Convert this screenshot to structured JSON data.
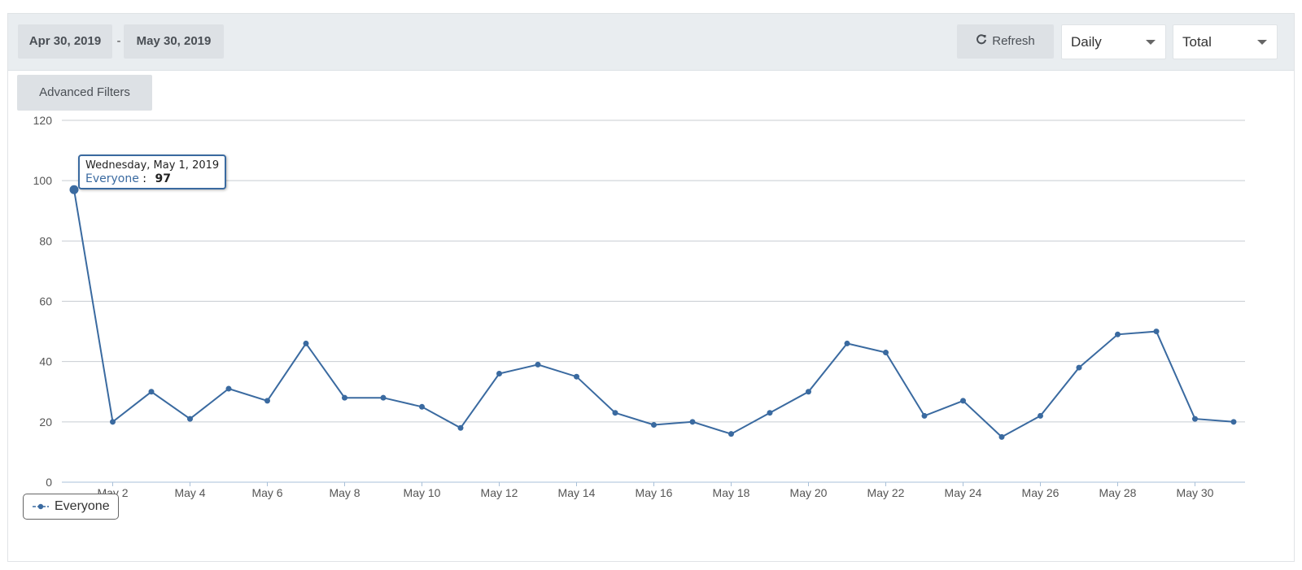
{
  "toolbar": {
    "start_date": "Apr 30, 2019",
    "date_separator": "-",
    "end_date": "May 30, 2019",
    "refresh_label": "Refresh",
    "refresh_icon": "refresh-icon",
    "interval_value": "Daily",
    "metric_value": "Total"
  },
  "filters": {
    "advanced_label": "Advanced Filters"
  },
  "tooltip": {
    "date": "Wednesday, May 1, 2019",
    "series_name": "Everyone",
    "separator": ":",
    "value": "97"
  },
  "legend": {
    "label": "Everyone"
  },
  "colors": {
    "series": "#3a6aa0",
    "grid": "#c8cdd2",
    "axis": "#a9c0d8"
  },
  "chart_data": {
    "type": "line",
    "xlabel": "",
    "ylabel": "",
    "ylim": [
      0,
      120
    ],
    "yticks": [
      0,
      20,
      40,
      60,
      80,
      100,
      120
    ],
    "x_tick_labels": [
      "May 2",
      "May 4",
      "May 6",
      "May 8",
      "May 10",
      "May 12",
      "May 14",
      "May 16",
      "May 18",
      "May 20",
      "May 22",
      "May 24",
      "May 26",
      "May 28",
      "May 30"
    ],
    "x_dates": [
      "May 1",
      "May 2",
      "May 3",
      "May 4",
      "May 5",
      "May 6",
      "May 7",
      "May 8",
      "May 9",
      "May 10",
      "May 11",
      "May 12",
      "May 13",
      "May 14",
      "May 15",
      "May 16",
      "May 17",
      "May 18",
      "May 19",
      "May 20",
      "May 21",
      "May 22",
      "May 23",
      "May 24",
      "May 25",
      "May 26",
      "May 27",
      "May 28",
      "May 29",
      "May 30",
      "May 31"
    ],
    "grid": true,
    "legend_position": "bottom-left",
    "series": [
      {
        "name": "Everyone",
        "values": [
          97,
          20,
          30,
          21,
          31,
          27,
          46,
          28,
          28,
          25,
          18,
          36,
          39,
          35,
          23,
          19,
          20,
          16,
          23,
          30,
          46,
          43,
          22,
          27,
          15,
          22,
          38,
          49,
          50,
          21,
          20
        ]
      }
    ],
    "highlighted_point": {
      "date": "May 1",
      "value": 97
    }
  }
}
